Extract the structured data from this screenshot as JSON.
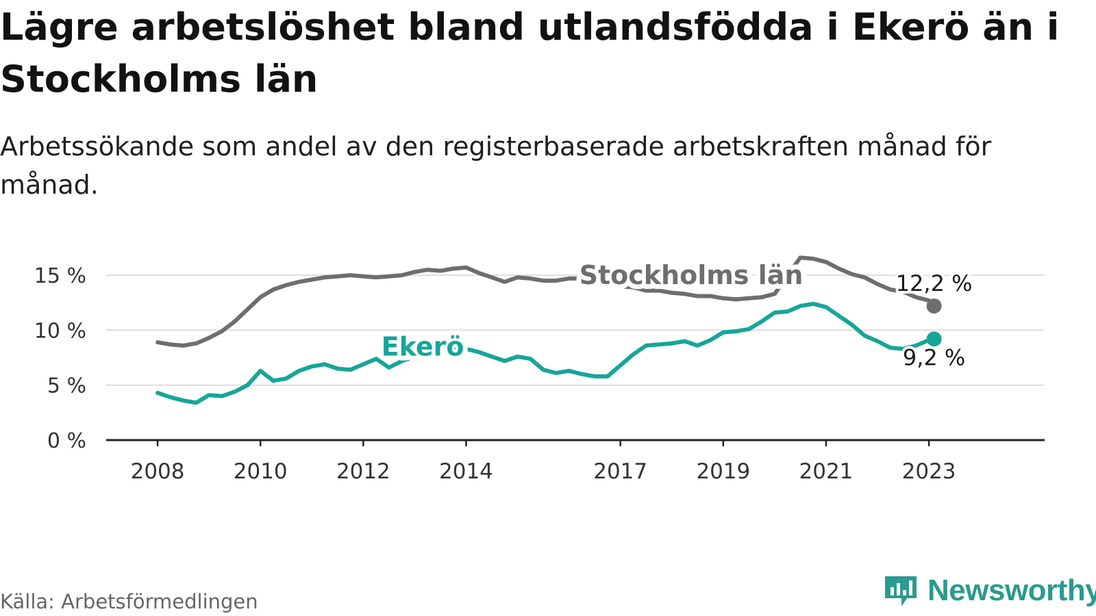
{
  "title": "Lägre arbetslöshet bland utlandsfödda i Ekerö än i Stockholms län",
  "subtitle": "Arbetssökande som andel av den registerbaserade arbetskraften månad för månad.",
  "source": "Källa: Arbetsförmedlingen",
  "brand": {
    "name": "Newsworthy",
    "color": "#2b9a8f"
  },
  "colors": {
    "stockholm": "#6e6e70",
    "ekero": "#17a59a",
    "grid": "#dddddd",
    "axis": "#222222",
    "text": "#333333"
  },
  "chart_data": {
    "type": "line",
    "x_unit": "year",
    "xlim": [
      2007.0,
      2025.25
    ],
    "ylim": [
      0,
      17
    ],
    "yticks": [
      {
        "value": 0,
        "label": "0 %"
      },
      {
        "value": 5,
        "label": "5 %"
      },
      {
        "value": 10,
        "label": "10 %"
      },
      {
        "value": 15,
        "label": "15 %"
      }
    ],
    "xticks": [
      {
        "value": 2008,
        "label": "2008"
      },
      {
        "value": 2010,
        "label": "2010"
      },
      {
        "value": 2012,
        "label": "2012"
      },
      {
        "value": 2014,
        "label": "2014"
      },
      {
        "value": 2017,
        "label": "2017"
      },
      {
        "value": 2019,
        "label": "2019"
      },
      {
        "value": 2021,
        "label": "2021"
      },
      {
        "value": 2023,
        "label": "2023"
      }
    ],
    "series": [
      {
        "name": "Stockholms län",
        "label": "Stockholms län",
        "label_anchor": {
          "x": 2016.2,
          "y": 14.2
        },
        "end_label": "12,2 %",
        "points": [
          [
            2008.0,
            8.9
          ],
          [
            2008.25,
            8.7
          ],
          [
            2008.5,
            8.6
          ],
          [
            2008.75,
            8.8
          ],
          [
            2009.0,
            9.3
          ],
          [
            2009.25,
            9.9
          ],
          [
            2009.5,
            10.8
          ],
          [
            2009.75,
            11.9
          ],
          [
            2010.0,
            13.0
          ],
          [
            2010.25,
            13.7
          ],
          [
            2010.5,
            14.1
          ],
          [
            2010.75,
            14.4
          ],
          [
            2011.0,
            14.6
          ],
          [
            2011.25,
            14.8
          ],
          [
            2011.5,
            14.9
          ],
          [
            2011.75,
            15.0
          ],
          [
            2012.0,
            14.9
          ],
          [
            2012.25,
            14.8
          ],
          [
            2012.5,
            14.9
          ],
          [
            2012.75,
            15.0
          ],
          [
            2013.0,
            15.3
          ],
          [
            2013.25,
            15.5
          ],
          [
            2013.5,
            15.4
          ],
          [
            2013.75,
            15.6
          ],
          [
            2014.0,
            15.7
          ],
          [
            2014.25,
            15.2
          ],
          [
            2014.5,
            14.8
          ],
          [
            2014.75,
            14.4
          ],
          [
            2015.0,
            14.8
          ],
          [
            2015.25,
            14.7
          ],
          [
            2015.5,
            14.5
          ],
          [
            2015.75,
            14.5
          ],
          [
            2016.0,
            14.7
          ],
          [
            2016.25,
            14.7
          ],
          [
            2016.5,
            14.6
          ],
          [
            2016.75,
            14.3
          ],
          [
            2017.0,
            14.0
          ],
          [
            2017.25,
            13.9
          ],
          [
            2017.5,
            13.6
          ],
          [
            2017.75,
            13.6
          ],
          [
            2018.0,
            13.4
          ],
          [
            2018.25,
            13.3
          ],
          [
            2018.5,
            13.1
          ],
          [
            2018.75,
            13.1
          ],
          [
            2019.0,
            12.9
          ],
          [
            2019.25,
            12.8
          ],
          [
            2019.5,
            12.9
          ],
          [
            2019.75,
            13.0
          ],
          [
            2020.0,
            13.3
          ],
          [
            2020.25,
            15.0
          ],
          [
            2020.5,
            16.6
          ],
          [
            2020.75,
            16.5
          ],
          [
            2021.0,
            16.2
          ],
          [
            2021.25,
            15.6
          ],
          [
            2021.5,
            15.1
          ],
          [
            2021.75,
            14.8
          ],
          [
            2022.0,
            14.2
          ],
          [
            2022.25,
            13.7
          ],
          [
            2022.5,
            13.5
          ],
          [
            2022.75,
            13.0
          ],
          [
            2023.0,
            12.7
          ],
          [
            2023.1,
            12.2
          ]
        ]
      },
      {
        "name": "Ekerö",
        "label": "Ekerö",
        "label_anchor": {
          "x": 2012.35,
          "y": 7.7
        },
        "end_label": "9,2 %",
        "points": [
          [
            2008.0,
            4.3
          ],
          [
            2008.25,
            3.9
          ],
          [
            2008.5,
            3.6
          ],
          [
            2008.75,
            3.4
          ],
          [
            2009.0,
            4.1
          ],
          [
            2009.25,
            4.0
          ],
          [
            2009.5,
            4.4
          ],
          [
            2009.75,
            5.0
          ],
          [
            2010.0,
            6.3
          ],
          [
            2010.25,
            5.4
          ],
          [
            2010.5,
            5.6
          ],
          [
            2010.75,
            6.3
          ],
          [
            2011.0,
            6.7
          ],
          [
            2011.25,
            6.9
          ],
          [
            2011.5,
            6.5
          ],
          [
            2011.75,
            6.4
          ],
          [
            2012.0,
            6.9
          ],
          [
            2012.25,
            7.4
          ],
          [
            2012.5,
            6.6
          ],
          [
            2012.75,
            7.2
          ],
          [
            2013.0,
            7.6
          ],
          [
            2013.25,
            7.9
          ],
          [
            2013.5,
            8.2
          ],
          [
            2013.75,
            8.2
          ],
          [
            2014.0,
            8.3
          ],
          [
            2014.25,
            8.0
          ],
          [
            2014.5,
            7.6
          ],
          [
            2014.75,
            7.2
          ],
          [
            2015.0,
            7.6
          ],
          [
            2015.25,
            7.4
          ],
          [
            2015.5,
            6.4
          ],
          [
            2015.75,
            6.1
          ],
          [
            2016.0,
            6.3
          ],
          [
            2016.25,
            6.0
          ],
          [
            2016.5,
            5.8
          ],
          [
            2016.75,
            5.8
          ],
          [
            2017.0,
            6.8
          ],
          [
            2017.25,
            7.8
          ],
          [
            2017.5,
            8.6
          ],
          [
            2017.75,
            8.7
          ],
          [
            2018.0,
            8.8
          ],
          [
            2018.25,
            9.0
          ],
          [
            2018.5,
            8.6
          ],
          [
            2018.75,
            9.1
          ],
          [
            2019.0,
            9.8
          ],
          [
            2019.25,
            9.9
          ],
          [
            2019.5,
            10.1
          ],
          [
            2019.75,
            10.8
          ],
          [
            2020.0,
            11.6
          ],
          [
            2020.25,
            11.7
          ],
          [
            2020.5,
            12.2
          ],
          [
            2020.75,
            12.4
          ],
          [
            2021.0,
            12.1
          ],
          [
            2021.25,
            11.3
          ],
          [
            2021.5,
            10.5
          ],
          [
            2021.75,
            9.5
          ],
          [
            2022.0,
            9.0
          ],
          [
            2022.25,
            8.4
          ],
          [
            2022.5,
            8.3
          ],
          [
            2022.75,
            8.6
          ],
          [
            2023.0,
            9.1
          ],
          [
            2023.1,
            9.2
          ]
        ]
      }
    ]
  }
}
